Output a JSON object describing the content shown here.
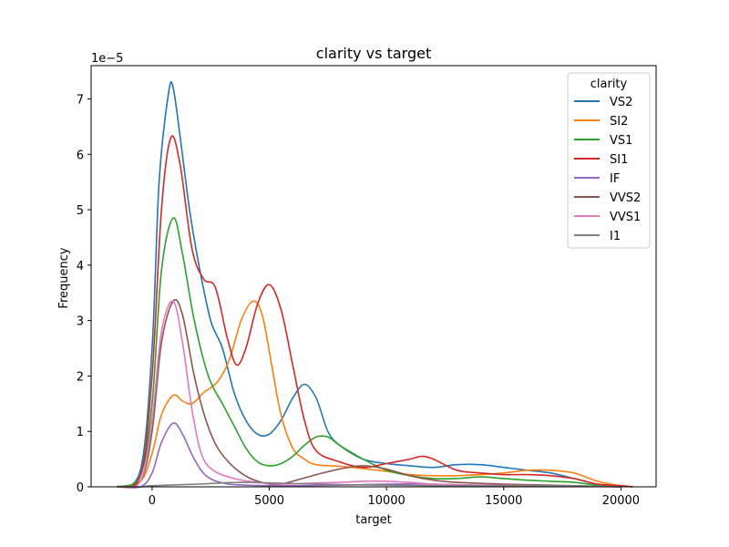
{
  "chart_data": {
    "type": "line",
    "title": "clarity vs target",
    "xlabel": "target",
    "ylabel": "Frequency",
    "y_offset_label": "1e−5",
    "xlim": [
      -2600,
      21500
    ],
    "ylim": [
      0,
      7.6
    ],
    "xticks": [
      0,
      5000,
      10000,
      15000,
      20000
    ],
    "xtick_labels": [
      "0",
      "5000",
      "10000",
      "15000",
      "20000"
    ],
    "yticks": [
      0,
      1,
      2,
      3,
      4,
      5,
      6,
      7
    ],
    "ytick_labels": [
      "0",
      "1",
      "2",
      "3",
      "4",
      "5",
      "6",
      "7"
    ],
    "grid": false,
    "legend": {
      "title": "clarity",
      "position": "top-right"
    },
    "series": [
      {
        "name": "VS2",
        "color": "#1f77b4",
        "points": [
          [
            -1500,
            0
          ],
          [
            -500,
            0.3
          ],
          [
            0,
            2.5
          ],
          [
            300,
            5.5
          ],
          [
            700,
            7.1
          ],
          [
            900,
            7.2
          ],
          [
            1200,
            6.3
          ],
          [
            1600,
            5.0
          ],
          [
            2000,
            4.0
          ],
          [
            2500,
            3.0
          ],
          [
            3000,
            2.5
          ],
          [
            3500,
            1.7
          ],
          [
            4000,
            1.2
          ],
          [
            4500,
            0.95
          ],
          [
            5000,
            0.95
          ],
          [
            5500,
            1.2
          ],
          [
            6000,
            1.6
          ],
          [
            6500,
            1.85
          ],
          [
            7000,
            1.6
          ],
          [
            7500,
            1.0
          ],
          [
            8000,
            0.75
          ],
          [
            9000,
            0.5
          ],
          [
            10000,
            0.42
          ],
          [
            11000,
            0.38
          ],
          [
            12000,
            0.35
          ],
          [
            13000,
            0.4
          ],
          [
            14000,
            0.4
          ],
          [
            15000,
            0.35
          ],
          [
            16000,
            0.3
          ],
          [
            17000,
            0.25
          ],
          [
            18000,
            0.15
          ],
          [
            19000,
            0.05
          ],
          [
            20000,
            0.02
          ],
          [
            20500,
            0
          ]
        ]
      },
      {
        "name": "SI2",
        "color": "#ff7f0e",
        "points": [
          [
            -1500,
            0
          ],
          [
            -500,
            0.1
          ],
          [
            0,
            0.6
          ],
          [
            400,
            1.3
          ],
          [
            900,
            1.65
          ],
          [
            1300,
            1.55
          ],
          [
            1700,
            1.5
          ],
          [
            2200,
            1.7
          ],
          [
            2800,
            1.9
          ],
          [
            3300,
            2.3
          ],
          [
            3800,
            3.0
          ],
          [
            4300,
            3.35
          ],
          [
            4700,
            3.1
          ],
          [
            5100,
            2.2
          ],
          [
            5500,
            1.3
          ],
          [
            6000,
            0.7
          ],
          [
            6500,
            0.5
          ],
          [
            7000,
            0.4
          ],
          [
            8000,
            0.37
          ],
          [
            9000,
            0.33
          ],
          [
            10000,
            0.28
          ],
          [
            11000,
            0.22
          ],
          [
            12000,
            0.2
          ],
          [
            13000,
            0.2
          ],
          [
            14000,
            0.22
          ],
          [
            15000,
            0.25
          ],
          [
            16000,
            0.3
          ],
          [
            17000,
            0.3
          ],
          [
            18000,
            0.25
          ],
          [
            19000,
            0.1
          ],
          [
            20000,
            0.02
          ],
          [
            20500,
            0
          ]
        ]
      },
      {
        "name": "VS1",
        "color": "#2ca02c",
        "points": [
          [
            -1500,
            0
          ],
          [
            -500,
            0.2
          ],
          [
            0,
            1.5
          ],
          [
            400,
            3.9
          ],
          [
            900,
            4.85
          ],
          [
            1300,
            4.2
          ],
          [
            1800,
            3.0
          ],
          [
            2400,
            2.0
          ],
          [
            3000,
            1.5
          ],
          [
            3500,
            1.1
          ],
          [
            4000,
            0.7
          ],
          [
            4500,
            0.45
          ],
          [
            5000,
            0.38
          ],
          [
            5500,
            0.42
          ],
          [
            6000,
            0.55
          ],
          [
            6500,
            0.75
          ],
          [
            7000,
            0.9
          ],
          [
            7500,
            0.9
          ],
          [
            8000,
            0.75
          ],
          [
            9000,
            0.5
          ],
          [
            10000,
            0.3
          ],
          [
            11000,
            0.2
          ],
          [
            12000,
            0.15
          ],
          [
            13000,
            0.15
          ],
          [
            14000,
            0.18
          ],
          [
            15000,
            0.15
          ],
          [
            16000,
            0.12
          ],
          [
            17000,
            0.1
          ],
          [
            18000,
            0.08
          ],
          [
            19000,
            0.03
          ],
          [
            20000,
            0
          ]
        ]
      },
      {
        "name": "SI1",
        "color": "#d62728",
        "points": [
          [
            -1500,
            0
          ],
          [
            -500,
            0.2
          ],
          [
            0,
            2.0
          ],
          [
            400,
            5.0
          ],
          [
            800,
            6.3
          ],
          [
            1200,
            5.8
          ],
          [
            1700,
            4.3
          ],
          [
            2200,
            3.75
          ],
          [
            2700,
            3.6
          ],
          [
            3200,
            2.7
          ],
          [
            3600,
            2.2
          ],
          [
            4000,
            2.5
          ],
          [
            4500,
            3.3
          ],
          [
            5000,
            3.65
          ],
          [
            5500,
            3.2
          ],
          [
            6000,
            2.2
          ],
          [
            6500,
            1.2
          ],
          [
            7000,
            0.65
          ],
          [
            8000,
            0.45
          ],
          [
            9000,
            0.35
          ],
          [
            10000,
            0.42
          ],
          [
            11000,
            0.5
          ],
          [
            11500,
            0.55
          ],
          [
            12000,
            0.5
          ],
          [
            13000,
            0.3
          ],
          [
            14000,
            0.25
          ],
          [
            15000,
            0.22
          ],
          [
            16000,
            0.22
          ],
          [
            17000,
            0.2
          ],
          [
            18000,
            0.15
          ],
          [
            19000,
            0.05
          ],
          [
            20000,
            0.02
          ],
          [
            20500,
            0
          ]
        ]
      },
      {
        "name": "IF",
        "color": "#9467bd",
        "points": [
          [
            -1500,
            0
          ],
          [
            -500,
            0
          ],
          [
            0,
            0.25
          ],
          [
            400,
            0.8
          ],
          [
            900,
            1.15
          ],
          [
            1300,
            0.95
          ],
          [
            1800,
            0.5
          ],
          [
            2300,
            0.2
          ],
          [
            3000,
            0.07
          ],
          [
            4000,
            0.03
          ],
          [
            6000,
            0.02
          ],
          [
            8000,
            0.03
          ],
          [
            10000,
            0.05
          ],
          [
            12000,
            0.05
          ],
          [
            14000,
            0.03
          ],
          [
            16000,
            0.02
          ],
          [
            18000,
            0.01
          ],
          [
            20000,
            0
          ]
        ]
      },
      {
        "name": "VVS2",
        "color": "#8c564b",
        "points": [
          [
            -1500,
            0
          ],
          [
            -500,
            0.1
          ],
          [
            0,
            1.0
          ],
          [
            400,
            2.6
          ],
          [
            900,
            3.35
          ],
          [
            1300,
            3.1
          ],
          [
            1800,
            2.0
          ],
          [
            2300,
            1.2
          ],
          [
            2800,
            0.7
          ],
          [
            3500,
            0.35
          ],
          [
            4200,
            0.15
          ],
          [
            5000,
            0.05
          ],
          [
            5500,
            0.05
          ],
          [
            6000,
            0.1
          ],
          [
            7000,
            0.22
          ],
          [
            8000,
            0.32
          ],
          [
            9000,
            0.38
          ],
          [
            10000,
            0.32
          ],
          [
            11000,
            0.2
          ],
          [
            12000,
            0.12
          ],
          [
            13000,
            0.08
          ],
          [
            15000,
            0.05
          ],
          [
            17000,
            0.03
          ],
          [
            20000,
            0
          ]
        ]
      },
      {
        "name": "VVS1",
        "color": "#e377c2",
        "points": [
          [
            -1500,
            0
          ],
          [
            -500,
            0.1
          ],
          [
            0,
            1.2
          ],
          [
            400,
            2.8
          ],
          [
            900,
            3.35
          ],
          [
            1300,
            2.6
          ],
          [
            1700,
            1.4
          ],
          [
            2100,
            0.6
          ],
          [
            2600,
            0.3
          ],
          [
            3500,
            0.15
          ],
          [
            4500,
            0.08
          ],
          [
            5500,
            0.05
          ],
          [
            7000,
            0.07
          ],
          [
            8000,
            0.08
          ],
          [
            9000,
            0.1
          ],
          [
            10000,
            0.1
          ],
          [
            11000,
            0.08
          ],
          [
            12000,
            0.05
          ],
          [
            14000,
            0.03
          ],
          [
            17000,
            0.02
          ],
          [
            20000,
            0
          ]
        ]
      },
      {
        "name": "I1",
        "color": "#7f7f7f",
        "points": [
          [
            -1500,
            0
          ],
          [
            -500,
            0
          ],
          [
            0,
            0.02
          ],
          [
            2000,
            0.05
          ],
          [
            3000,
            0.07
          ],
          [
            4000,
            0.08
          ],
          [
            5000,
            0.07
          ],
          [
            6000,
            0.06
          ],
          [
            8000,
            0.04
          ],
          [
            10000,
            0.03
          ],
          [
            13000,
            0.02
          ],
          [
            16000,
            0.02
          ],
          [
            18000,
            0.02
          ],
          [
            20000,
            0
          ]
        ]
      }
    ]
  }
}
